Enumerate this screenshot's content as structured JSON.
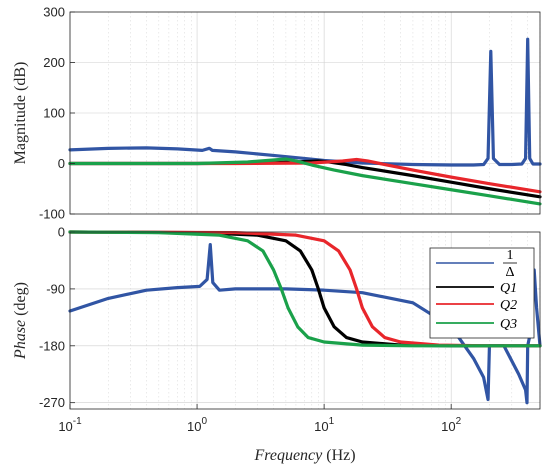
{
  "chart_data": [
    {
      "type": "line",
      "xscale": "log",
      "xlim": [
        0.1,
        500
      ],
      "ylim": [
        -100,
        300
      ],
      "yticks": [
        -100,
        0,
        100,
        200,
        300
      ],
      "ylabel": "Magnitude (dB)",
      "grid": true,
      "series": [
        {
          "name": "1/Δ",
          "color": "#3155a4",
          "points": [
            [
              0.1,
              27
            ],
            [
              0.2,
              30
            ],
            [
              0.4,
              31
            ],
            [
              0.7,
              29
            ],
            [
              1.1,
              26
            ],
            [
              1.25,
              30
            ],
            [
              1.32,
              26
            ],
            [
              2,
              23
            ],
            [
              4,
              16
            ],
            [
              7,
              10
            ],
            [
              10,
              6
            ],
            [
              20,
              1
            ],
            [
              50,
              -2
            ],
            [
              100,
              -3
            ],
            [
              150,
              -3
            ],
            [
              180,
              -2
            ],
            [
              195,
              10
            ],
            [
              205,
              222
            ],
            [
              215,
              10
            ],
            [
              240,
              -2
            ],
            [
              300,
              -2
            ],
            [
              360,
              -1
            ],
            [
              385,
              10
            ],
            [
              400,
              246
            ],
            [
              415,
              10
            ],
            [
              440,
              -1
            ],
            [
              500,
              -1
            ]
          ]
        },
        {
          "name": "Q1",
          "color": "#000000",
          "points": [
            [
              0.1,
              0
            ],
            [
              1,
              0
            ],
            [
              3,
              1
            ],
            [
              6,
              3
            ],
            [
              9,
              5
            ],
            [
              11,
              3
            ],
            [
              15,
              -2
            ],
            [
              20,
              -8
            ],
            [
              50,
              -24
            ],
            [
              100,
              -37
            ],
            [
              200,
              -50
            ],
            [
              500,
              -66
            ]
          ]
        },
        {
          "name": "Q2",
          "color": "#e8262b",
          "points": [
            [
              0.1,
              0
            ],
            [
              2,
              0
            ],
            [
              8,
              1
            ],
            [
              14,
              5
            ],
            [
              18,
              8
            ],
            [
              22,
              5
            ],
            [
              30,
              -2
            ],
            [
              50,
              -13
            ],
            [
              100,
              -27
            ],
            [
              200,
              -40
            ],
            [
              500,
              -56
            ]
          ]
        },
        {
          "name": "Q3",
          "color": "#1aa14a",
          "points": [
            [
              0.1,
              0
            ],
            [
              1,
              0
            ],
            [
              2.5,
              3
            ],
            [
              4,
              7
            ],
            [
              5,
              9
            ],
            [
              6,
              5
            ],
            [
              8,
              -3
            ],
            [
              12,
              -13
            ],
            [
              20,
              -24
            ],
            [
              50,
              -40
            ],
            [
              100,
              -52
            ],
            [
              200,
              -64
            ],
            [
              500,
              -80
            ]
          ]
        }
      ]
    },
    {
      "type": "line",
      "xscale": "log",
      "xlim": [
        0.1,
        500
      ],
      "ylim": [
        -280,
        0
      ],
      "yticks": [
        0,
        -90,
        -180,
        -270
      ],
      "xticks": [
        0.1,
        1,
        10,
        100
      ],
      "xtick_labels": [
        {
          "base": "10",
          "exp": "-1"
        },
        {
          "base": "10",
          "exp": "0"
        },
        {
          "base": "10",
          "exp": "1"
        },
        {
          "base": "10",
          "exp": "2"
        }
      ],
      "ylabel": "Phase (deg)",
      "xlabel": "Frequency (Hz)",
      "grid": true,
      "legend_position": "right",
      "legend": [
        {
          "label_num": "1",
          "label_den": "Δ",
          "color": "#3155a4"
        },
        {
          "label": "Q1",
          "color": "#000000"
        },
        {
          "label": "Q2",
          "color": "#e8262b"
        },
        {
          "label": "Q3",
          "color": "#1aa14a"
        }
      ],
      "series": [
        {
          "name": "1/Δ",
          "color": "#3155a4",
          "points": [
            [
              0.1,
              -125
            ],
            [
              0.2,
              -105
            ],
            [
              0.4,
              -92
            ],
            [
              0.7,
              -88
            ],
            [
              1.05,
              -86
            ],
            [
              1.2,
              -75
            ],
            [
              1.27,
              -20
            ],
            [
              1.33,
              -80
            ],
            [
              1.5,
              -92
            ],
            [
              2,
              -90
            ],
            [
              5,
              -90
            ],
            [
              10,
              -92
            ],
            [
              20,
              -96
            ],
            [
              50,
              -112
            ],
            [
              100,
              -150
            ],
            [
              150,
              -200
            ],
            [
              180,
              -230
            ],
            [
              195,
              -265
            ],
            [
              200,
              -180
            ],
            [
              260,
              -180
            ],
            [
              340,
              -225
            ],
            [
              385,
              -250
            ],
            [
              395,
              -270
            ],
            [
              400,
              -180
            ],
            [
              430,
              -150
            ],
            [
              450,
              -60
            ],
            [
              470,
              -120
            ],
            [
              500,
              -180
            ]
          ]
        },
        {
          "name": "Q1",
          "color": "#000000",
          "points": [
            [
              0.1,
              0
            ],
            [
              1,
              -1
            ],
            [
              3,
              -5
            ],
            [
              5,
              -14
            ],
            [
              6.5,
              -30
            ],
            [
              8,
              -60
            ],
            [
              9,
              -90
            ],
            [
              10,
              -120
            ],
            [
              12,
              -150
            ],
            [
              15,
              -167
            ],
            [
              20,
              -174
            ],
            [
              40,
              -179
            ],
            [
              100,
              -180
            ],
            [
              500,
              -180
            ]
          ]
        },
        {
          "name": "Q2",
          "color": "#e8262b",
          "points": [
            [
              0.1,
              0
            ],
            [
              2,
              -1
            ],
            [
              6,
              -5
            ],
            [
              10,
              -14
            ],
            [
              13,
              -30
            ],
            [
              16,
              -60
            ],
            [
              18,
              -90
            ],
            [
              20,
              -120
            ],
            [
              24,
              -150
            ],
            [
              30,
              -167
            ],
            [
              40,
              -174
            ],
            [
              80,
              -179
            ],
            [
              200,
              -180
            ],
            [
              500,
              -180
            ]
          ]
        },
        {
          "name": "Q3",
          "color": "#1aa14a",
          "points": [
            [
              0.1,
              0
            ],
            [
              0.5,
              -1
            ],
            [
              1.5,
              -5
            ],
            [
              2.5,
              -14
            ],
            [
              3.3,
              -30
            ],
            [
              4,
              -60
            ],
            [
              4.6,
              -90
            ],
            [
              5.2,
              -120
            ],
            [
              6.2,
              -150
            ],
            [
              7.5,
              -167
            ],
            [
              10,
              -174
            ],
            [
              20,
              -179
            ],
            [
              50,
              -180
            ],
            [
              500,
              -180
            ]
          ]
        }
      ]
    }
  ]
}
